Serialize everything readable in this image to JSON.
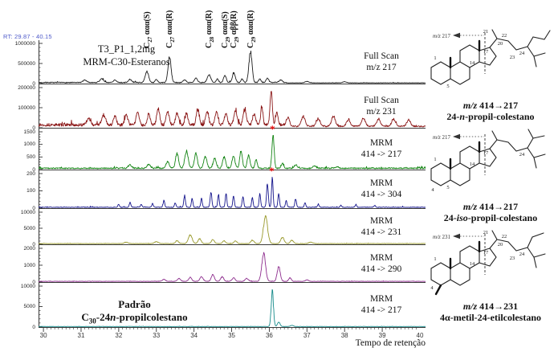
{
  "figure": {
    "rt_range": "RT: 29.87 - 40.15",
    "sample_line1": "T3_P1_1,2mg",
    "sample_line2": "MRM-C30-Esteranos",
    "standard": {
      "l1": "Padrão",
      "pre": "C",
      "sub": "30",
      "mid": "-24",
      "it": "n",
      "post": "-propilcolestano"
    }
  },
  "colors": {
    "asterisk": "#e80000",
    "rt_text": "#4d59c9",
    "axis": "#3a3a3a"
  },
  "chart_data": {
    "type": "line",
    "title": "MRM-C30-Esteranos chromatograms",
    "x": {
      "label": "Tempo de retenção",
      "range": [
        29.87,
        40.15
      ],
      "ticks": [
        30,
        31,
        32,
        33,
        34,
        35,
        36,
        37,
        38,
        39,
        40
      ]
    },
    "panels": [
      {
        "id": "fullscan-217",
        "label1": "Full Scan",
        "label2": "m/z 217",
        "color": "#1c1c1c",
        "y_ticks": [
          "1000000",
          "500000",
          "0"
        ],
        "noise": 0.03,
        "seed": 7,
        "peaks": [
          [
            31.1,
            0.07,
            0.05
          ],
          [
            31.55,
            0.1,
            0.05
          ],
          [
            31.9,
            0.06,
            0.04
          ],
          [
            32.3,
            0.09,
            0.04
          ],
          [
            32.75,
            0.3,
            0.045
          ],
          [
            33.0,
            0.08,
            0.03
          ],
          [
            33.35,
            0.72,
            0.04
          ],
          [
            33.75,
            0.07,
            0.04
          ],
          [
            34.05,
            0.12,
            0.04
          ],
          [
            34.4,
            0.22,
            0.045
          ],
          [
            34.62,
            0.1,
            0.03
          ],
          [
            34.82,
            0.2,
            0.035
          ],
          [
            35.06,
            0.26,
            0.04
          ],
          [
            35.28,
            0.1,
            0.03
          ],
          [
            35.5,
            0.88,
            0.04
          ],
          [
            35.75,
            0.1,
            0.03
          ],
          [
            35.95,
            0.12,
            0.035
          ],
          [
            36.3,
            0.07,
            0.04
          ],
          [
            37.0,
            0.04,
            0.05
          ],
          [
            38.0,
            0.03,
            0.05
          ]
        ]
      },
      {
        "id": "fullscan-231",
        "label1": "Full Scan",
        "label2": "m/z 231",
        "color": "#8b1717",
        "y_ticks": [
          "200000",
          "100000",
          "0"
        ],
        "noise": 0.11,
        "seed": 13,
        "peaks": [
          [
            31.2,
            0.18,
            0.05
          ],
          [
            31.6,
            0.28,
            0.05
          ],
          [
            31.9,
            0.22,
            0.04
          ],
          [
            32.2,
            0.28,
            0.04
          ],
          [
            32.5,
            0.36,
            0.04
          ],
          [
            32.8,
            0.28,
            0.04
          ],
          [
            33.05,
            0.42,
            0.04
          ],
          [
            33.3,
            0.38,
            0.04
          ],
          [
            33.55,
            0.33,
            0.04
          ],
          [
            33.8,
            0.3,
            0.04
          ],
          [
            34.1,
            0.44,
            0.04
          ],
          [
            34.35,
            0.38,
            0.04
          ],
          [
            34.6,
            0.36,
            0.04
          ],
          [
            34.85,
            0.33,
            0.04
          ],
          [
            35.1,
            0.4,
            0.04
          ],
          [
            35.35,
            0.45,
            0.04
          ],
          [
            35.6,
            0.33,
            0.04
          ],
          [
            35.8,
            0.5,
            0.03
          ],
          [
            36.05,
            0.95,
            0.03
          ],
          [
            36.2,
            0.35,
            0.03
          ],
          [
            36.5,
            0.25,
            0.04
          ],
          [
            36.9,
            0.28,
            0.05
          ],
          [
            37.3,
            0.2,
            0.05
          ],
          [
            37.7,
            0.26,
            0.05
          ],
          [
            38.1,
            0.18,
            0.05
          ],
          [
            38.5,
            0.22,
            0.05
          ],
          [
            38.9,
            0.18,
            0.05
          ],
          [
            39.3,
            0.2,
            0.05
          ],
          [
            39.7,
            0.16,
            0.05
          ]
        ]
      },
      {
        "id": "mrm-414-217a",
        "label1": "MRM",
        "label2": "414 -> 217",
        "color": "#158515",
        "y_ticks": [
          "1500",
          "1000",
          "500",
          "0"
        ],
        "noise": 0.045,
        "seed": 23,
        "peaks": [
          [
            32.3,
            0.1,
            0.04
          ],
          [
            32.8,
            0.12,
            0.04
          ],
          [
            33.3,
            0.2,
            0.04
          ],
          [
            33.55,
            0.45,
            0.04
          ],
          [
            33.8,
            0.5,
            0.045
          ],
          [
            34.05,
            0.42,
            0.04
          ],
          [
            34.3,
            0.35,
            0.04
          ],
          [
            34.55,
            0.3,
            0.04
          ],
          [
            34.8,
            0.32,
            0.04
          ],
          [
            35.05,
            0.35,
            0.04
          ],
          [
            35.25,
            0.5,
            0.035
          ],
          [
            35.45,
            0.4,
            0.035
          ],
          [
            35.65,
            0.25,
            0.03
          ],
          [
            36.1,
            0.97,
            0.028
          ],
          [
            36.35,
            0.15,
            0.03
          ],
          [
            36.7,
            0.1,
            0.04
          ],
          [
            37.2,
            0.07,
            0.04
          ],
          [
            37.8,
            0.05,
            0.04
          ]
        ]
      },
      {
        "id": "mrm-414-304",
        "label1": "MRM",
        "label2": "414 -> 304",
        "color": "#14148c",
        "y_ticks": [
          "200",
          "100",
          "0"
        ],
        "noise": 0.025,
        "seed": 31,
        "peaks": [
          [
            32.0,
            0.1,
            0.02
          ],
          [
            32.3,
            0.16,
            0.02
          ],
          [
            32.6,
            0.1,
            0.02
          ],
          [
            32.9,
            0.12,
            0.02
          ],
          [
            33.2,
            0.22,
            0.02
          ],
          [
            33.5,
            0.14,
            0.02
          ],
          [
            33.75,
            0.38,
            0.022
          ],
          [
            33.95,
            0.3,
            0.02
          ],
          [
            34.2,
            0.28,
            0.02
          ],
          [
            34.45,
            0.52,
            0.022
          ],
          [
            34.65,
            0.42,
            0.02
          ],
          [
            34.85,
            0.46,
            0.02
          ],
          [
            35.05,
            0.4,
            0.02
          ],
          [
            35.3,
            0.36,
            0.02
          ],
          [
            35.55,
            0.3,
            0.02
          ],
          [
            35.75,
            0.45,
            0.02
          ],
          [
            35.95,
            0.8,
            0.022
          ],
          [
            36.08,
            0.97,
            0.02
          ],
          [
            36.25,
            0.45,
            0.02
          ],
          [
            36.45,
            0.22,
            0.02
          ],
          [
            36.7,
            0.3,
            0.02
          ],
          [
            36.95,
            0.15,
            0.02
          ],
          [
            37.3,
            0.1,
            0.02
          ],
          [
            37.9,
            0.07,
            0.02
          ],
          [
            38.3,
            0.09,
            0.02
          ],
          [
            38.8,
            0.06,
            0.02
          ]
        ]
      },
      {
        "id": "mrm-414-231",
        "label1": "MRM",
        "label2": "414 -> 231",
        "color": "#99992b",
        "y_ticks": [
          "10000",
          "5000",
          "0"
        ],
        "noise": 0.018,
        "seed": 41,
        "peaks": [
          [
            32.2,
            0.05,
            0.05
          ],
          [
            33.0,
            0.07,
            0.05
          ],
          [
            33.55,
            0.1,
            0.04
          ],
          [
            33.9,
            0.3,
            0.05
          ],
          [
            34.15,
            0.18,
            0.04
          ],
          [
            34.5,
            0.14,
            0.04
          ],
          [
            34.8,
            0.1,
            0.04
          ],
          [
            35.1,
            0.09,
            0.04
          ],
          [
            35.55,
            0.12,
            0.04
          ],
          [
            35.9,
            0.95,
            0.055
          ],
          [
            36.35,
            0.22,
            0.045
          ],
          [
            36.6,
            0.12,
            0.04
          ],
          [
            37.1,
            0.05,
            0.05
          ]
        ]
      },
      {
        "id": "mrm-414-290",
        "label1": "MRM",
        "label2": "414 -> 290",
        "color": "#8e2d8e",
        "y_ticks": [
          "2000",
          "1000",
          "0"
        ],
        "noise": 0.018,
        "seed": 53,
        "peaks": [
          [
            33.2,
            0.07,
            0.04
          ],
          [
            33.6,
            0.1,
            0.04
          ],
          [
            33.9,
            0.13,
            0.04
          ],
          [
            34.2,
            0.16,
            0.04
          ],
          [
            34.5,
            0.22,
            0.04
          ],
          [
            34.75,
            0.15,
            0.04
          ],
          [
            35.05,
            0.12,
            0.04
          ],
          [
            35.4,
            0.1,
            0.04
          ],
          [
            35.85,
            0.92,
            0.05
          ],
          [
            36.25,
            0.5,
            0.04
          ],
          [
            36.55,
            0.12,
            0.035
          ],
          [
            37.0,
            0.05,
            0.04
          ]
        ]
      },
      {
        "id": "mrm-414-217b",
        "label1": "MRM",
        "label2": "414 -> 217",
        "color": "#178b8b",
        "y_ticks": [
          "10000",
          "5000",
          "0"
        ],
        "noise": 0.007,
        "seed": 61,
        "peaks": [
          [
            36.08,
            0.97,
            0.03
          ],
          [
            36.25,
            0.12,
            0.035
          ],
          [
            36.6,
            0.03,
            0.04
          ]
        ]
      }
    ],
    "peak_annotations": [
      {
        "pre": "C",
        "sub": "27",
        "text": "ααα(S)",
        "t": 32.75
      },
      {
        "pre": "C",
        "sub": "27",
        "text": "ααα(R)",
        "t": 33.35
      },
      {
        "pre": "C",
        "sub": "28",
        "text": "ααα(R)",
        "t": 34.4
      },
      {
        "pre": "C",
        "sub": "29",
        "text": "ααα(S)",
        "t": 34.82
      },
      {
        "pre": "C",
        "sub": "29",
        "text": "αββ(R)",
        "t": 35.06
      },
      {
        "pre": "C",
        "sub": "29",
        "text": "ααα(R)",
        "t": 35.5
      }
    ],
    "asterisks": [
      {
        "panel": 2,
        "t": 36.1
      },
      {
        "panel": 3,
        "t": 36.08
      }
    ]
  },
  "structures": [
    {
      "mz_it": "m/z",
      "mz_rest": " 217",
      "cap_it": "m/z",
      "cap_rest": " 414→217",
      "name_p1": "24-",
      "name_it": "n",
      "name_p2": "-propil-colestano",
      "numbers": {
        "c1": "1",
        "c5": "5",
        "c14": "14",
        "c17": "17",
        "c20": "20",
        "c21": "21",
        "c22": "22",
        "c23": "23",
        "c24": "24"
      }
    },
    {
      "mz_it": "m/z",
      "mz_rest": " 217",
      "cap_it": "m/z",
      "cap_rest": " 414→217",
      "name_p1": "24-",
      "name_it": "iso",
      "name_p2": "-propil-colestano",
      "numbers": {
        "c1": "1",
        "c4": "4",
        "c5": "5",
        "c14": "14",
        "c17": "17",
        "c24": "24"
      }
    },
    {
      "mz_it": "m/z",
      "mz_rest": " 231",
      "cap_it": "m/z",
      "cap_rest": " 414→231",
      "name_p1": "4α-metil-24-etilcolestano",
      "name_it": "",
      "name_p2": "",
      "numbers": {
        "c1": "1",
        "c4": "4",
        "c14": "14",
        "c17": "17",
        "c20": "20",
        "c21": "21",
        "c22": "22",
        "c23": "23",
        "c24": "24"
      }
    }
  ]
}
